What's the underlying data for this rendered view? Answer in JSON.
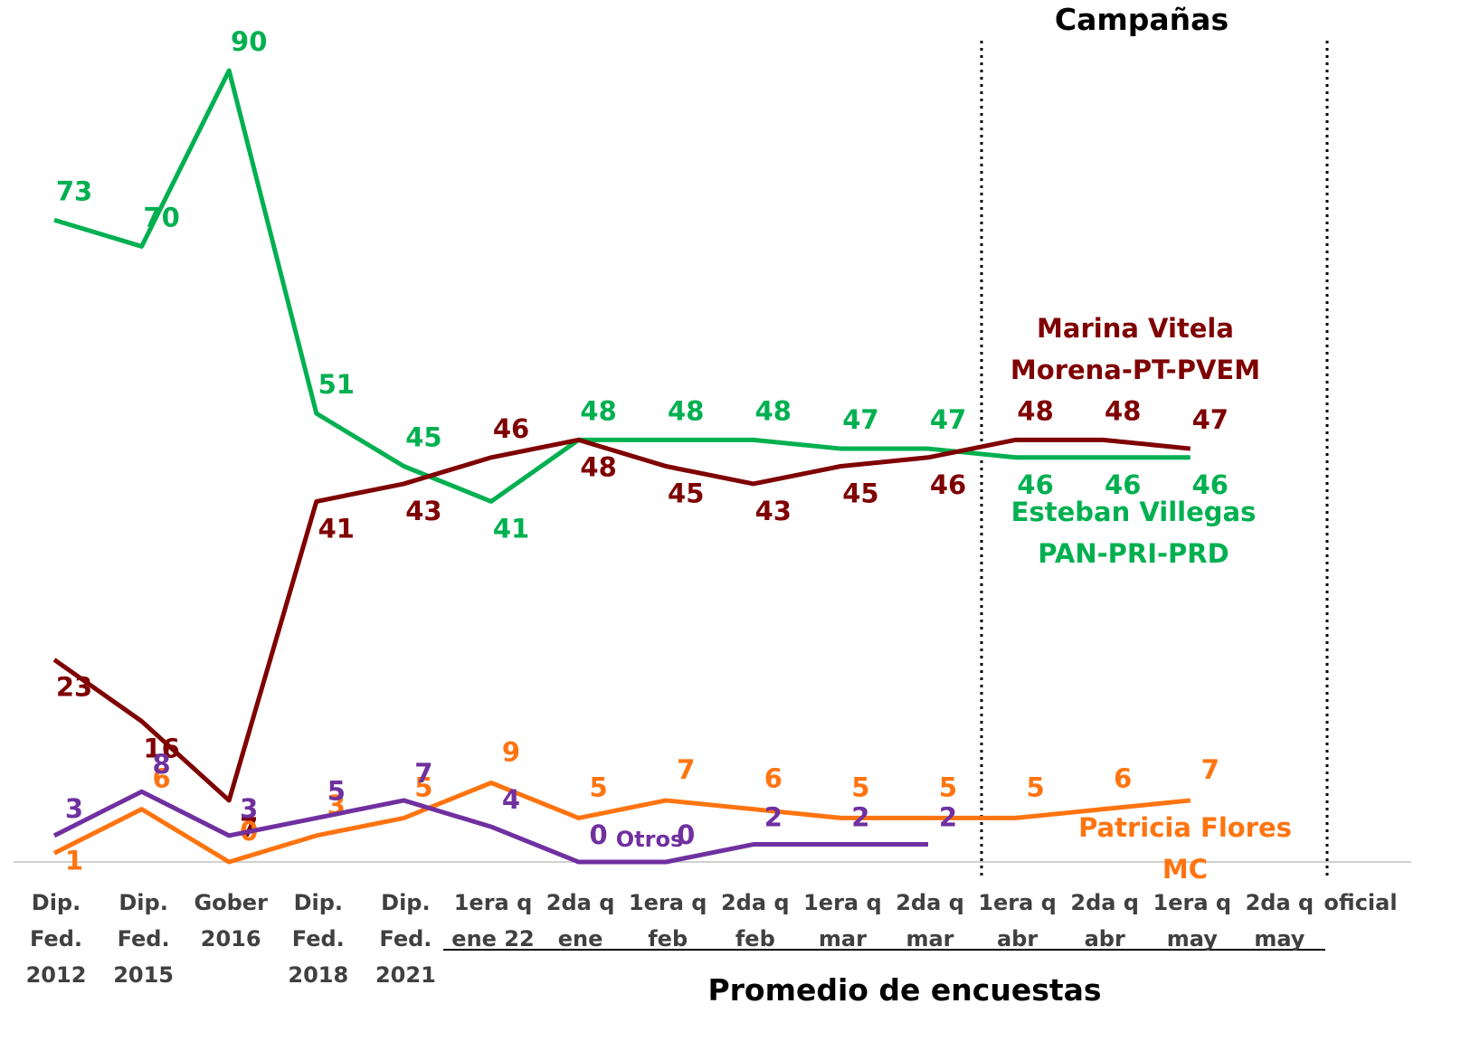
{
  "chart_data": {
    "type": "line",
    "annotation": "Campañas",
    "xlabel": "Promedio de encuestas",
    "categories": [
      "Dip.\nFed.\n2012",
      "Dip.\nFed.\n2015",
      "Gober\n2016",
      "Dip.\nFed.\n2018",
      "Dip.\nFed.\n2021",
      "1era q\nene 22",
      "2da q\nene",
      "1era q\nfeb",
      "2da q\nfeb",
      "1era q\nmar",
      "2da q\nmar",
      "1era q\nabr",
      "2da q\nabr",
      "1era q\nmay",
      "2da q\nmay",
      "oficial"
    ],
    "series": [
      {
        "name": "Esteban Villegas\nPAN-PRI-PRD",
        "color": "#00b050",
        "values": [
          73,
          70,
          90,
          51,
          45,
          41,
          48,
          48,
          48,
          47,
          47,
          46,
          46,
          46,
          null,
          null
        ]
      },
      {
        "name": "Marina Vitela\nMorena-PT-PVEM",
        "color": "#7f0000",
        "values": [
          23,
          16,
          7,
          41,
          43,
          46,
          48,
          45,
          43,
          45,
          46,
          48,
          48,
          47,
          null,
          null
        ]
      },
      {
        "name": "Patricia Flores\nMC",
        "color": "#ff7410",
        "values": [
          1,
          6,
          0,
          3,
          5,
          9,
          5,
          7,
          6,
          5,
          5,
          5,
          6,
          7,
          null,
          null
        ]
      },
      {
        "name": "Otros",
        "color": "#7030a0",
        "values": [
          3,
          8,
          3,
          5,
          7,
          4,
          0,
          0,
          2,
          2,
          2,
          null,
          null,
          null,
          null,
          null
        ]
      }
    ]
  }
}
